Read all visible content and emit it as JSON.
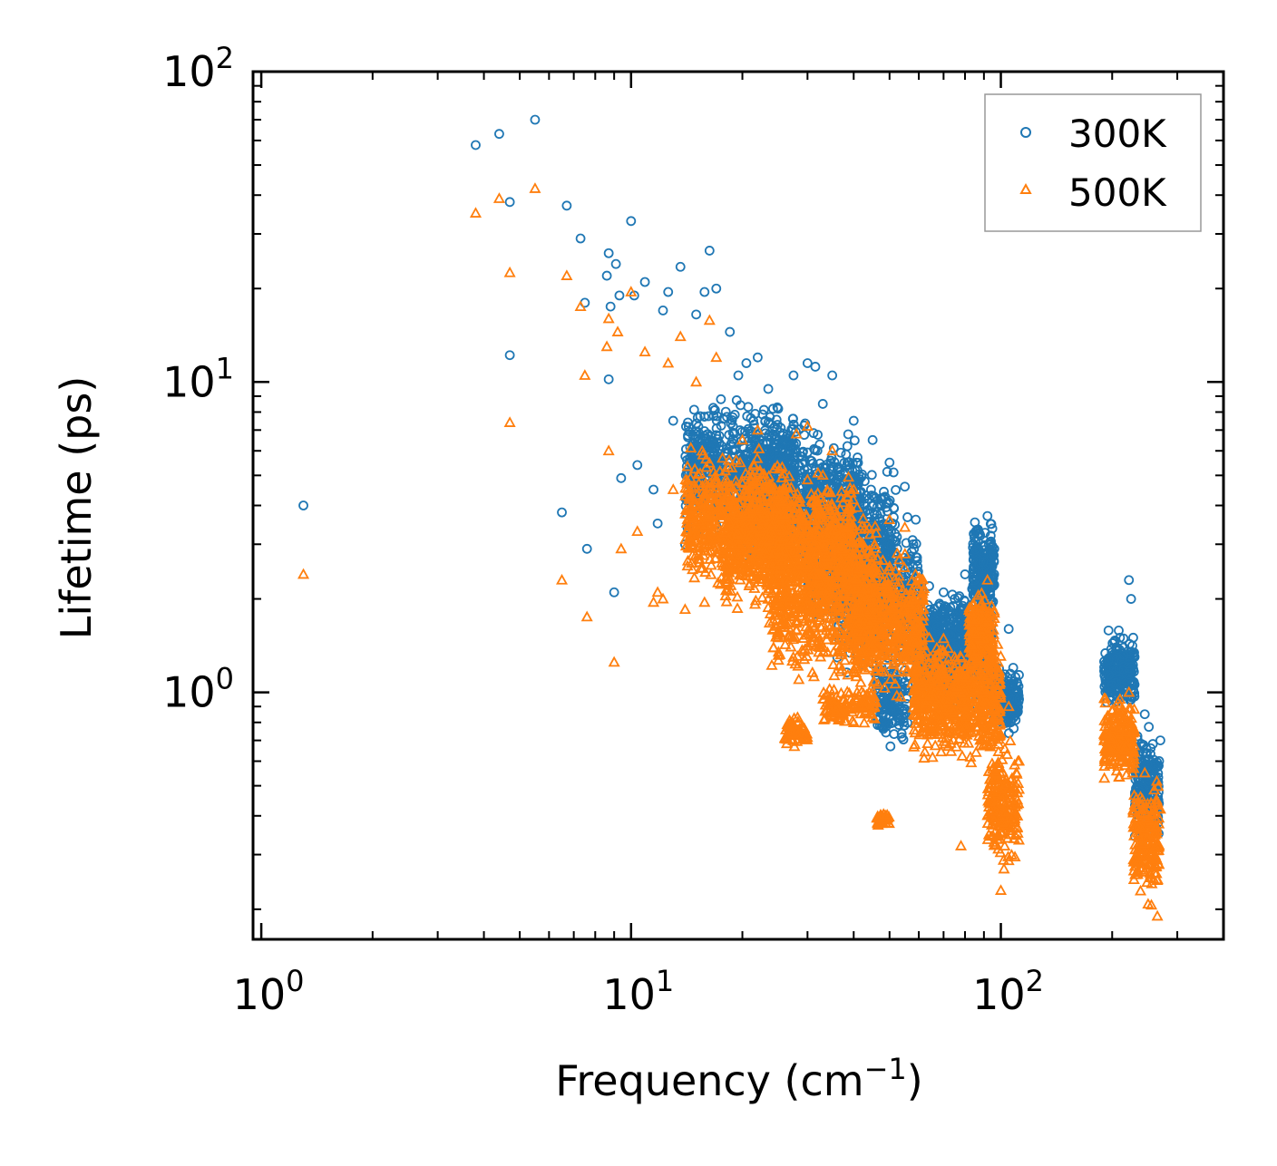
{
  "chart_data": {
    "type": "scatter",
    "title": "",
    "xlabel": "Frequency (cm",
    "xlabel_sup": "−1",
    "xlabel_end": ")",
    "ylabel": "Lifetime (ps)",
    "xscale": "log",
    "yscale": "log",
    "xlim": [
      0.95,
      400
    ],
    "ylim": [
      0.16,
      100
    ],
    "x_ticks": [
      {
        "value": 1,
        "base": "10",
        "exp": "0"
      },
      {
        "value": 10,
        "base": "10",
        "exp": "1"
      },
      {
        "value": 100,
        "base": "10",
        "exp": "2"
      }
    ],
    "y_ticks": [
      {
        "value": 1,
        "base": "10",
        "exp": "0"
      },
      {
        "value": 10,
        "base": "10",
        "exp": "1"
      },
      {
        "value": 100,
        "base": "10",
        "exp": "2"
      }
    ],
    "legend_position": "top-right",
    "series": [
      {
        "name": "300K",
        "marker": "circle",
        "color": "#1f77b4",
        "points": [
          [
            1.3,
            4.0
          ],
          [
            3.8,
            58
          ],
          [
            4.4,
            63
          ],
          [
            4.7,
            38
          ],
          [
            4.7,
            12.2
          ],
          [
            5.5,
            70
          ],
          [
            6.5,
            3.8
          ],
          [
            6.7,
            37
          ],
          [
            7.3,
            29
          ],
          [
            7.6,
            2.9
          ],
          [
            7.5,
            18
          ],
          [
            8.6,
            22
          ],
          [
            8.7,
            26
          ],
          [
            8.8,
            17.5
          ],
          [
            8.7,
            10.2
          ],
          [
            9.0,
            2.1
          ],
          [
            9.1,
            24
          ],
          [
            9.3,
            19
          ],
          [
            9.4,
            4.9
          ],
          [
            10.0,
            33
          ],
          [
            10.2,
            19
          ],
          [
            10.4,
            5.4
          ],
          [
            10.9,
            21
          ],
          [
            11.5,
            4.5
          ],
          [
            11.8,
            3.5
          ],
          [
            12.2,
            17
          ],
          [
            12.6,
            19.5
          ],
          [
            13.0,
            7.5
          ],
          [
            13.6,
            23.5
          ],
          [
            14.0,
            3.0
          ],
          [
            15.0,
            16.5
          ],
          [
            15.8,
            19.5
          ],
          [
            16.3,
            26.5
          ],
          [
            17.0,
            20
          ],
          [
            17.5,
            8.8
          ],
          [
            18.5,
            14.5
          ],
          [
            19.5,
            10.5
          ],
          [
            20.5,
            11.5
          ],
          [
            22.0,
            12
          ],
          [
            23.5,
            9.5
          ],
          [
            25.0,
            8.2
          ],
          [
            27.5,
            10.5
          ],
          [
            30.0,
            11.5
          ],
          [
            31.5,
            11.2
          ],
          [
            33.0,
            8.5
          ],
          [
            35.0,
            10.5
          ],
          [
            40.0,
            7.5
          ],
          [
            45.0,
            6.5
          ],
          [
            50.0,
            5.5
          ],
          [
            55.0,
            4.6
          ],
          [
            58.0,
            3.0
          ],
          [
            64.0,
            2.2
          ],
          [
            70.0,
            2.1
          ],
          [
            75.0,
            2.0
          ],
          [
            80.0,
            2.4
          ],
          [
            88.0,
            3.2
          ],
          [
            92.0,
            3.7
          ],
          [
            96.0,
            2.9
          ],
          [
            105.0,
            1.6
          ],
          [
            108.0,
            1.2
          ],
          [
            112.0,
            0.95
          ],
          [
            210.0,
            1.5
          ],
          [
            222.0,
            2.3
          ],
          [
            225.0,
            2.0
          ],
          [
            228.0,
            1.5
          ],
          [
            245.0,
            0.85
          ],
          [
            262.0,
            0.35
          ],
          [
            270.0,
            0.7
          ]
        ],
        "clusters": [
          {
            "x": [
              14.0,
              28.0
            ],
            "y": [
              2.8,
              9.5
            ],
            "n": 700
          },
          {
            "x": [
              20.0,
              42.0
            ],
            "y": [
              2.2,
              8.0
            ],
            "n": 700
          },
          {
            "x": [
              30.0,
              52.0
            ],
            "y": [
              1.5,
              5.8
            ],
            "n": 600
          },
          {
            "x": [
              36.0,
              60.0
            ],
            "y": [
              1.0,
              4.2
            ],
            "n": 500
          },
          {
            "x": [
              46.0,
              56.0
            ],
            "y": [
              0.62,
              1.4
            ],
            "n": 150
          },
          {
            "x": [
              60.0,
              95.0
            ],
            "y": [
              0.85,
              2.3
            ],
            "n": 700
          },
          {
            "x": [
              84.0,
              96.0
            ],
            "y": [
              1.6,
              3.8
            ],
            "n": 200
          },
          {
            "x": [
              95.0,
              112.0
            ],
            "y": [
              0.7,
              1.3
            ],
            "n": 180
          },
          {
            "x": [
              190.0,
              230.0
            ],
            "y": [
              0.85,
              1.6
            ],
            "n": 260
          },
          {
            "x": [
              230.0,
              268.0
            ],
            "y": [
              0.3,
              0.85
            ],
            "n": 200
          }
        ]
      },
      {
        "name": "500K",
        "marker": "triangle",
        "color": "#ff7f0e",
        "points": [
          [
            1.3,
            2.4
          ],
          [
            3.8,
            35
          ],
          [
            4.4,
            39
          ],
          [
            4.7,
            22.5
          ],
          [
            4.7,
            7.4
          ],
          [
            5.5,
            42
          ],
          [
            6.5,
            2.3
          ],
          [
            6.7,
            22
          ],
          [
            7.3,
            17.5
          ],
          [
            7.6,
            1.75
          ],
          [
            7.5,
            10.5
          ],
          [
            8.6,
            13
          ],
          [
            8.7,
            16
          ],
          [
            8.7,
            6.0
          ],
          [
            9.0,
            1.25
          ],
          [
            9.2,
            14.5
          ],
          [
            9.4,
            2.9
          ],
          [
            10.0,
            19.5
          ],
          [
            10.4,
            3.3
          ],
          [
            10.9,
            12.5
          ],
          [
            11.5,
            1.95
          ],
          [
            11.8,
            2.1
          ],
          [
            12.2,
            2.0
          ],
          [
            12.6,
            11.5
          ],
          [
            13.0,
            4.5
          ],
          [
            13.6,
            14
          ],
          [
            14.0,
            1.85
          ],
          [
            15.0,
            10
          ],
          [
            15.8,
            1.95
          ],
          [
            16.3,
            15.8
          ],
          [
            17.0,
            12
          ],
          [
            20.0,
            6.5
          ],
          [
            22.0,
            7.0
          ],
          [
            25.0,
            1.5
          ],
          [
            28.0,
            6.8
          ],
          [
            30.0,
            7.2
          ],
          [
            35.0,
            6.0
          ],
          [
            40.0,
            4.5
          ],
          [
            44.0,
            1.2
          ],
          [
            50.0,
            3.6
          ],
          [
            55.0,
            3.4
          ],
          [
            58.0,
            2.0
          ],
          [
            64.0,
            1.5
          ],
          [
            70.0,
            1.35
          ],
          [
            75.0,
            1.3
          ],
          [
            78.0,
            0.32
          ],
          [
            88.0,
            1.9
          ],
          [
            92.0,
            2.3
          ],
          [
            96.0,
            1.8
          ],
          [
            100.0,
            0.23
          ],
          [
            105.0,
            0.9
          ],
          [
            112.0,
            0.6
          ],
          [
            210.0,
            0.95
          ],
          [
            222.0,
            1.0
          ],
          [
            245.0,
            0.55
          ],
          [
            265.0,
            0.19
          ],
          [
            270.0,
            0.42
          ]
        ],
        "clusters": [
          {
            "x": [
              14.0,
              26.0
            ],
            "y": [
              2.0,
              6.5
            ],
            "n": 600
          },
          {
            "x": [
              18.0,
              40.0
            ],
            "y": [
              1.6,
              5.8
            ],
            "n": 800
          },
          {
            "x": [
              24.0,
              46.0
            ],
            "y": [
              0.95,
              4.5
            ],
            "n": 700
          },
          {
            "x": [
              26.0,
              30.0
            ],
            "y": [
              0.65,
              0.85
            ],
            "n": 60
          },
          {
            "x": [
              33.0,
              46.0
            ],
            "y": [
              0.75,
              1.1
            ],
            "n": 120
          },
          {
            "x": [
              40.0,
              62.0
            ],
            "y": [
              0.9,
              3.2
            ],
            "n": 500
          },
          {
            "x": [
              46.0,
              50.0
            ],
            "y": [
              0.36,
              0.42
            ],
            "n": 30
          },
          {
            "x": [
              58.0,
              100.0
            ],
            "y": [
              0.55,
              1.6
            ],
            "n": 700
          },
          {
            "x": [
              82.0,
              96.0
            ],
            "y": [
              1.1,
              2.2
            ],
            "n": 200
          },
          {
            "x": [
              92.0,
              112.0
            ],
            "y": [
              0.25,
              0.75
            ],
            "n": 200
          },
          {
            "x": [
              190.0,
              230.0
            ],
            "y": [
              0.5,
              1.0
            ],
            "n": 220
          },
          {
            "x": [
              228.0,
              268.0
            ],
            "y": [
              0.2,
              0.55
            ],
            "n": 200
          }
        ]
      }
    ]
  }
}
